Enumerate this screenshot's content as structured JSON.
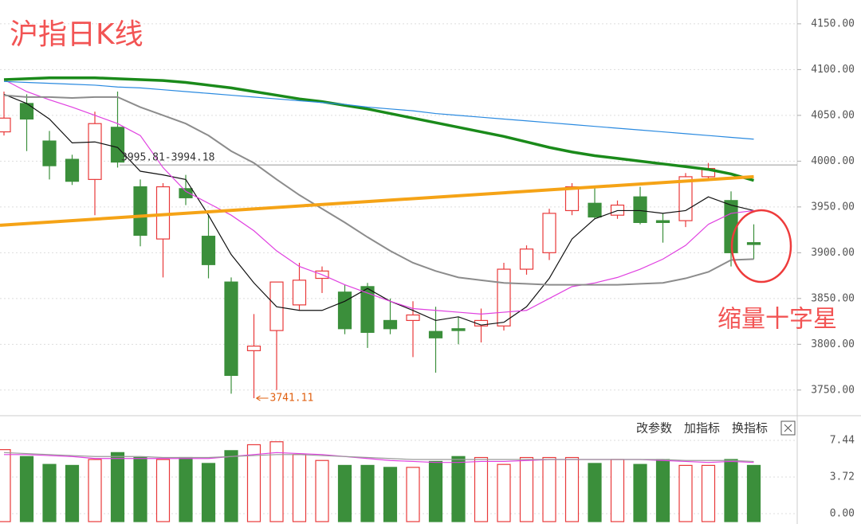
{
  "chart_data": {
    "type": "candlestick",
    "title": "沪指日K线",
    "annotation": "缩量十字星",
    "up_color": "#e8393a",
    "down_color": "#3b8f3b",
    "ylim": [
      3722,
      4176
    ],
    "yticks": [
      {
        "value": 4150,
        "label": "4150.00"
      },
      {
        "value": 4100,
        "label": "4100.00"
      },
      {
        "value": 4050,
        "label": "4050.00"
      },
      {
        "value": 4000,
        "label": "4000.00"
      },
      {
        "value": 3950,
        "label": "3950.00"
      },
      {
        "value": 3900,
        "label": "3900.00"
      },
      {
        "value": 3850,
        "label": "3850.00"
      },
      {
        "value": 3800,
        "label": "3800.00"
      },
      {
        "value": 3750,
        "label": "3750.00"
      }
    ],
    "grid": true,
    "open": [
      4032,
      4063,
      4022,
      4002,
      3980,
      4037,
      3972,
      3915,
      3970,
      3918,
      3868,
      3793,
      3815,
      3843,
      3872,
      3857,
      3863,
      3826,
      3826,
      3814,
      3817,
      3820,
      3820,
      3882,
      3900,
      3946,
      3954,
      3941,
      3961,
      3935,
      3935,
      3983,
      3957,
      3911
    ],
    "high": [
      4076,
      4073,
      4033,
      4007,
      4054,
      4076,
      3980,
      3976,
      3985,
      3941,
      3873,
      3833,
      3868,
      3889,
      3885,
      3865,
      3867,
      3850,
      3847,
      3841,
      3830,
      3839,
      3889,
      3908,
      3948,
      3976,
      3972,
      3957,
      3972,
      3943,
      3987,
      3998,
      3967,
      3931
    ],
    "low": [
      4028,
      4011,
      3980,
      3974,
      3941,
      3993,
      3907,
      3873,
      3952,
      3872,
      3746,
      3741.11,
      3750,
      3837,
      3856,
      3811,
      3796,
      3811,
      3786,
      3769,
      3800,
      3802,
      3815,
      3876,
      3892,
      3941,
      3937,
      3937,
      3931,
      3911,
      3928,
      3980,
      3885,
      3893
    ],
    "close": [
      4047,
      4046,
      3995,
      3978,
      4041,
      3999,
      3919,
      3972,
      3960,
      3887,
      3766,
      3798,
      3868,
      3870,
      3880,
      3817,
      3813,
      3817,
      3832,
      3807,
      3815,
      3826,
      3882,
      3904,
      3943,
      3972,
      3939,
      3952,
      3933,
      3933,
      3983,
      3992,
      3900,
      3909
    ],
    "series": [
      {
        "color": "#111111",
        "width": 1.2,
        "values": [
          4073,
          4063,
          4046,
          4020,
          4021,
          4015,
          3989,
          3985,
          3980,
          3941,
          3898,
          3867,
          3841,
          3837,
          3837,
          3847,
          3861,
          3847,
          3837,
          3826,
          3830,
          3821,
          3824,
          3841,
          3872,
          3915,
          3937,
          3946,
          3946,
          3943,
          3946,
          3961,
          3952,
          3946
        ]
      },
      {
        "color": "#e040e0",
        "width": 1.2,
        "values": [
          4089,
          4076,
          4067,
          4059,
          4050,
          4041,
          4028,
          3993,
          3967,
          3954,
          3941,
          3924,
          3902,
          3885,
          3876,
          3865,
          3856,
          3847,
          3839,
          3837,
          3835,
          3833,
          3835,
          3837,
          3850,
          3863,
          3867,
          3873,
          3882,
          3893,
          3908,
          3931,
          3943,
          3946
        ]
      },
      {
        "color": "#8c8c8c",
        "width": 2,
        "values": [
          4072,
          4070,
          4070,
          4069,
          4070,
          4070,
          4059,
          4050,
          4041,
          4028,
          4011,
          3998,
          3980,
          3963,
          3948,
          3933,
          3917,
          3902,
          3889,
          3880,
          3873,
          3870,
          3867,
          3866,
          3865,
          3865,
          3865,
          3865,
          3866,
          3867,
          3872,
          3879,
          3892,
          3893
        ]
      },
      {
        "color": "#1a8a1a",
        "width": 3.5,
        "values": [
          4089,
          4090,
          4091,
          4091,
          4091,
          4090,
          4089,
          4088,
          4086,
          4083,
          4080,
          4076,
          4072,
          4068,
          4065,
          4061,
          4057,
          4052,
          4047,
          4042,
          4037,
          4032,
          4027,
          4021,
          4015,
          4010,
          4006,
          4003,
          4000,
          3997,
          3994,
          3991,
          3986,
          3979
        ]
      },
      {
        "color": "#2a8ae0",
        "width": 1.2,
        "values": [
          4087,
          4086,
          4085,
          4084,
          4083,
          4081,
          4080,
          4078,
          4076,
          4074,
          4072,
          4070,
          4068,
          4066,
          4064,
          4062,
          4059,
          4057,
          4055,
          4052,
          4050,
          4048,
          4046,
          4044,
          4042,
          4040,
          4038,
          4036,
          4034,
          4032,
          4030,
          4028,
          4026,
          4024
        ]
      }
    ],
    "trendline": {
      "color": "#f5a316",
      "values": [
        3930,
        3983
      ]
    },
    "reference_line": {
      "label": "3995.81-3994.18",
      "value": 3995.81
    },
    "low_label": {
      "label": "3741.11",
      "value": 3741.11
    },
    "buttons": [
      "改参数",
      "加指标",
      "换指标"
    ],
    "volume": [
      6.5,
      5.8,
      5.0,
      4.9,
      5.5,
      6.2,
      5.7,
      5.5,
      5.7,
      5.1,
      6.4,
      7.0,
      7.3,
      6.0,
      5.4,
      4.9,
      4.9,
      4.7,
      4.7,
      5.3,
      5.8,
      5.7,
      5.0,
      5.7,
      5.7,
      5.7,
      5.1,
      5.5,
      5.0,
      5.5,
      4.9,
      4.9,
      5.5,
      4.9
    ],
    "volume_series": [
      {
        "color": "#e040e0",
        "values": [
          6.0,
          6.0,
          5.9,
          5.8,
          5.6,
          5.6,
          5.6,
          5.6,
          5.6,
          5.6,
          5.8,
          6.0,
          6.2,
          6.1,
          6.0,
          5.8,
          5.6,
          5.4,
          5.3,
          5.2,
          5.2,
          5.3,
          5.3,
          5.4,
          5.5,
          5.5,
          5.5,
          5.5,
          5.5,
          5.4,
          5.3,
          5.2,
          5.3,
          5.2
        ]
      },
      {
        "color": "#999999",
        "values": [
          6.2,
          6.1,
          6.0,
          5.9,
          5.8,
          5.8,
          5.8,
          5.7,
          5.7,
          5.7,
          5.8,
          5.9,
          6.0,
          6.0,
          5.9,
          5.8,
          5.7,
          5.6,
          5.5,
          5.5,
          5.5,
          5.5,
          5.5,
          5.5,
          5.5,
          5.5,
          5.5,
          5.5,
          5.5,
          5.5,
          5.4,
          5.4,
          5.4,
          5.3
        ]
      }
    ],
    "vlim": [
      0,
      7.44
    ],
    "vticks": [
      7.44,
      3.72,
      {
        "value": 0,
        "label": "0.00"
      }
    ]
  }
}
